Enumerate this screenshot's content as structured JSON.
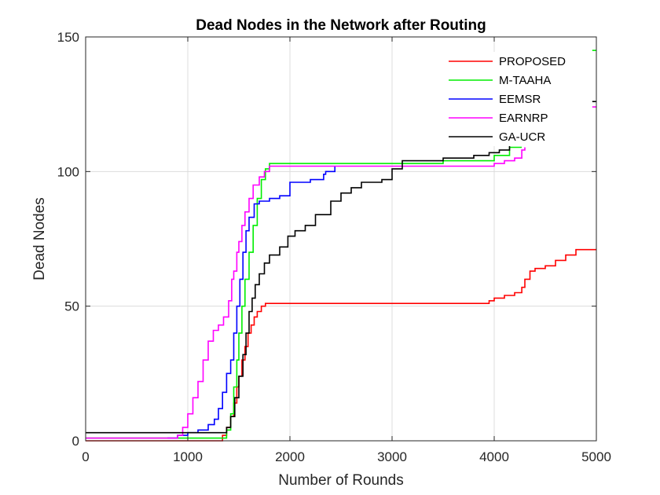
{
  "chart_data": {
    "type": "line",
    "title": "Dead Nodes in the Network after Routing",
    "xlabel": "Number of Rounds",
    "ylabel": "Dead Nodes",
    "xlim": [
      0,
      5000
    ],
    "ylim": [
      0,
      150
    ],
    "xticks": [
      0,
      1000,
      2000,
      3000,
      4000,
      5000
    ],
    "yticks": [
      0,
      50,
      100,
      150
    ],
    "grid": true,
    "legend_position": "top-right",
    "series": [
      {
        "name": "PROPOSED",
        "color": "#ff0000",
        "points": [
          [
            0,
            0
          ],
          [
            1330,
            0
          ],
          [
            1340,
            2
          ],
          [
            1380,
            5
          ],
          [
            1420,
            9
          ],
          [
            1450,
            14
          ],
          [
            1480,
            20
          ],
          [
            1500,
            24
          ],
          [
            1530,
            30
          ],
          [
            1560,
            35
          ],
          [
            1590,
            40
          ],
          [
            1620,
            43
          ],
          [
            1650,
            46
          ],
          [
            1680,
            48
          ],
          [
            1720,
            50
          ],
          [
            1760,
            51
          ],
          [
            1800,
            51
          ],
          [
            2500,
            51
          ],
          [
            3000,
            51
          ],
          [
            3900,
            51
          ],
          [
            3950,
            52
          ],
          [
            4000,
            53
          ],
          [
            4100,
            54
          ],
          [
            4200,
            55
          ],
          [
            4270,
            57
          ],
          [
            4300,
            60
          ],
          [
            4350,
            63
          ],
          [
            4400,
            64
          ],
          [
            4500,
            65
          ],
          [
            4600,
            67
          ],
          [
            4700,
            69
          ],
          [
            4800,
            71
          ],
          [
            5000,
            71
          ]
        ]
      },
      {
        "name": "M-TAAHA",
        "color": "#00ee00",
        "points": [
          [
            0,
            1
          ],
          [
            1330,
            1
          ],
          [
            1380,
            4
          ],
          [
            1420,
            10
          ],
          [
            1450,
            20
          ],
          [
            1480,
            30
          ],
          [
            1500,
            40
          ],
          [
            1530,
            50
          ],
          [
            1560,
            60
          ],
          [
            1600,
            70
          ],
          [
            1640,
            80
          ],
          [
            1680,
            90
          ],
          [
            1720,
            97
          ],
          [
            1760,
            101
          ],
          [
            1800,
            103
          ],
          [
            2500,
            103
          ],
          [
            3500,
            104
          ],
          [
            4000,
            106
          ],
          [
            4150,
            109
          ],
          [
            4270,
            109
          ]
        ],
        "extra_mark": [
          [
            4960,
            145
          ],
          [
            5000,
            145
          ]
        ]
      },
      {
        "name": "EEMSR",
        "color": "#0000ff",
        "points": [
          [
            800,
            1
          ],
          [
            900,
            2
          ],
          [
            1000,
            3
          ],
          [
            1100,
            4
          ],
          [
            1200,
            6
          ],
          [
            1260,
            8
          ],
          [
            1300,
            12
          ],
          [
            1340,
            18
          ],
          [
            1380,
            25
          ],
          [
            1420,
            30
          ],
          [
            1450,
            40
          ],
          [
            1480,
            50
          ],
          [
            1510,
            60
          ],
          [
            1540,
            70
          ],
          [
            1570,
            78
          ],
          [
            1600,
            83
          ],
          [
            1650,
            88
          ],
          [
            1700,
            89
          ],
          [
            1800,
            90
          ],
          [
            1900,
            91
          ],
          [
            2000,
            96
          ],
          [
            2200,
            97
          ],
          [
            2330,
            99
          ],
          [
            2350,
            100
          ],
          [
            2440,
            102
          ]
        ]
      },
      {
        "name": "EARNRP",
        "color": "#ff00ff",
        "points": [
          [
            0,
            1
          ],
          [
            850,
            1
          ],
          [
            900,
            2
          ],
          [
            950,
            5
          ],
          [
            1000,
            10
          ],
          [
            1050,
            16
          ],
          [
            1100,
            22
          ],
          [
            1150,
            30
          ],
          [
            1200,
            37
          ],
          [
            1250,
            41
          ],
          [
            1300,
            43
          ],
          [
            1350,
            46
          ],
          [
            1400,
            52
          ],
          [
            1430,
            60
          ],
          [
            1450,
            63
          ],
          [
            1480,
            70
          ],
          [
            1500,
            74
          ],
          [
            1530,
            80
          ],
          [
            1560,
            85
          ],
          [
            1600,
            90
          ],
          [
            1640,
            95
          ],
          [
            1700,
            98
          ],
          [
            1750,
            100
          ],
          [
            1800,
            102
          ],
          [
            2500,
            102
          ],
          [
            3500,
            102
          ],
          [
            4000,
            103
          ],
          [
            4100,
            104
          ],
          [
            4200,
            105
          ],
          [
            4270,
            108
          ],
          [
            4300,
            109
          ]
        ],
        "extra_mark": [
          [
            4960,
            124
          ],
          [
            5000,
            124
          ]
        ]
      },
      {
        "name": "GA-UCR",
        "color": "#000000",
        "points": [
          [
            0,
            3
          ],
          [
            1330,
            3
          ],
          [
            1380,
            5
          ],
          [
            1420,
            9
          ],
          [
            1460,
            16
          ],
          [
            1500,
            24
          ],
          [
            1540,
            32
          ],
          [
            1570,
            40
          ],
          [
            1600,
            48
          ],
          [
            1630,
            53
          ],
          [
            1660,
            58
          ],
          [
            1700,
            62
          ],
          [
            1750,
            66
          ],
          [
            1800,
            69
          ],
          [
            1900,
            72
          ],
          [
            1980,
            76
          ],
          [
            2050,
            78
          ],
          [
            2150,
            80
          ],
          [
            2250,
            84
          ],
          [
            2400,
            89
          ],
          [
            2500,
            92
          ],
          [
            2600,
            94
          ],
          [
            2700,
            96
          ],
          [
            2900,
            97
          ],
          [
            3000,
            101
          ],
          [
            3100,
            104
          ],
          [
            3500,
            105
          ],
          [
            3800,
            106
          ],
          [
            3950,
            107
          ],
          [
            4050,
            108
          ],
          [
            4150,
            110
          ],
          [
            4270,
            110
          ]
        ],
        "extra_mark": [
          [
            4960,
            126
          ],
          [
            5000,
            126
          ]
        ]
      }
    ]
  }
}
